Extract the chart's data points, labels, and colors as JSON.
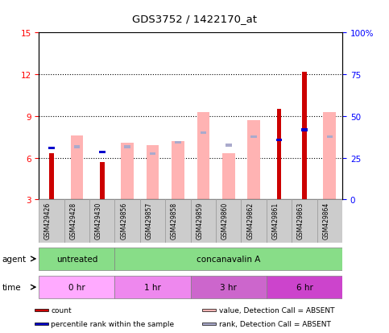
{
  "title": "GDS3752 / 1422170_at",
  "samples": [
    "GSM429426",
    "GSM429428",
    "GSM429430",
    "GSM429856",
    "GSM429857",
    "GSM429858",
    "GSM429859",
    "GSM429860",
    "GSM429862",
    "GSM429861",
    "GSM429863",
    "GSM429864"
  ],
  "count_values": [
    6.3,
    0,
    5.7,
    0,
    0,
    0,
    0,
    0,
    0,
    9.5,
    12.2,
    0
  ],
  "rank_values": [
    6.7,
    0,
    6.4,
    0,
    0,
    0,
    0,
    0,
    0,
    7.3,
    8.0,
    0
  ],
  "absent_value_bars": [
    0,
    7.6,
    0,
    7.1,
    6.9,
    7.2,
    9.3,
    6.3,
    8.7,
    0,
    0,
    9.3
  ],
  "absent_rank_bars": [
    0,
    6.8,
    0,
    6.8,
    6.3,
    7.1,
    7.8,
    6.9,
    7.5,
    0,
    0,
    7.5
  ],
  "ylim_left": [
    3,
    15
  ],
  "ylim_right": [
    0,
    100
  ],
  "yticks_left": [
    3,
    6,
    9,
    12,
    15
  ],
  "yticks_right": [
    0,
    25,
    50,
    75,
    100
  ],
  "ytick_labels_right": [
    "0",
    "25",
    "50",
    "75",
    "100%"
  ],
  "color_count": "#cc0000",
  "color_rank": "#0000cc",
  "color_absent_value": "#ffb3b3",
  "color_absent_rank": "#aaaacc",
  "agent_groups": [
    {
      "label": "untreated",
      "start": 0,
      "end": 3
    },
    {
      "label": "concanavalin A",
      "start": 3,
      "end": 12
    }
  ],
  "agent_color": "#88dd88",
  "time_groups": [
    {
      "label": "0 hr",
      "start": 0,
      "end": 3,
      "color": "#ffaaff"
    },
    {
      "label": "1 hr",
      "start": 3,
      "end": 6,
      "color": "#ee88ee"
    },
    {
      "label": "3 hr",
      "start": 6,
      "end": 9,
      "color": "#cc66cc"
    },
    {
      "label": "6 hr",
      "start": 9,
      "end": 12,
      "color": "#cc44cc"
    }
  ],
  "legend_items": [
    {
      "color": "#cc0000",
      "label": "count"
    },
    {
      "color": "#0000cc",
      "label": "percentile rank within the sample"
    },
    {
      "color": "#ffb3b3",
      "label": "value, Detection Call = ABSENT"
    },
    {
      "color": "#aaaacc",
      "label": "rank, Detection Call = ABSENT"
    }
  ],
  "grid_yticks": [
    6,
    9,
    12
  ],
  "sample_box_color": "#cccccc",
  "sample_box_edge": "#999999"
}
